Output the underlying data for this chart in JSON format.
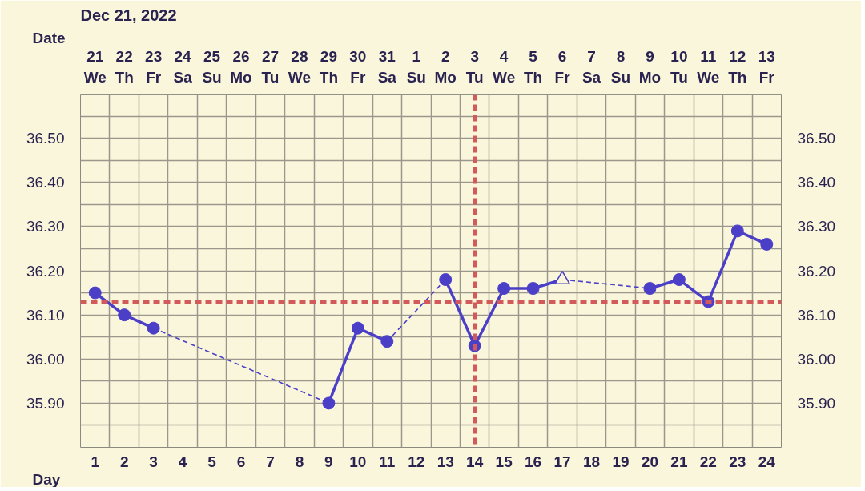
{
  "chart_data": {
    "type": "line",
    "title": "Dec 21, 2022",
    "xlabel": "Day",
    "x2label": "Date",
    "x": [
      1,
      2,
      3,
      4,
      5,
      6,
      7,
      8,
      9,
      10,
      11,
      12,
      13,
      14,
      15,
      16,
      17,
      18,
      19,
      20,
      21,
      22,
      23,
      24
    ],
    "xlim": [
      0.5,
      24.5
    ],
    "xticks": [
      1,
      2,
      3,
      4,
      5,
      6,
      7,
      8,
      9,
      10,
      11,
      12,
      13,
      14,
      15,
      16,
      17,
      18,
      19,
      20,
      21,
      22,
      23,
      24
    ],
    "x2lim": [
      "2022-12-20T12:00",
      "2023-01-13T12:00"
    ],
    "x2ticks": [
      {
        "value": "2022-12-21",
        "label": "21\nWe"
      },
      {
        "value": "2022-12-22",
        "label": "22\nTh"
      },
      {
        "value": "2022-12-23",
        "label": "23\nFr"
      },
      {
        "value": "2022-12-24",
        "label": "24\nSa"
      },
      {
        "value": "2022-12-25",
        "label": "25\nSu"
      },
      {
        "value": "2022-12-26",
        "label": "26\nMo"
      },
      {
        "value": "2022-12-27",
        "label": "27\nTu"
      },
      {
        "value": "2022-12-28",
        "label": "28\nWe"
      },
      {
        "value": "2022-12-29",
        "label": "29\nTh"
      },
      {
        "value": "2022-12-30",
        "label": "30\nFr"
      },
      {
        "value": "2022-12-31",
        "label": "31\nSa"
      },
      {
        "value": "2023-01-01",
        "label": "1\nSu"
      },
      {
        "value": "2023-01-02",
        "label": "2\nMo"
      },
      {
        "value": "2023-01-03",
        "label": "3\nTu"
      },
      {
        "value": "2023-01-04",
        "label": "4\nWe"
      },
      {
        "value": "2023-01-05",
        "label": "5\nTh"
      },
      {
        "value": "2023-01-06",
        "label": "6\nFr"
      },
      {
        "value": "2023-01-07",
        "label": "7\nSa"
      },
      {
        "value": "2023-01-08",
        "label": "8\nSu"
      },
      {
        "value": "2023-01-09",
        "label": "9\nMo"
      },
      {
        "value": "2023-01-10",
        "label": "10\nTu"
      },
      {
        "value": "2023-01-11",
        "label": "11\nWe"
      },
      {
        "value": "2023-01-12",
        "label": "12\nTh"
      },
      {
        "value": "2023-01-13",
        "label": "13\nFr"
      }
    ],
    "ylim": [
      35.8,
      36.6
    ],
    "yticks": [
      {
        "value": 35.9,
        "label": "35.90"
      },
      {
        "value": 36.0,
        "label": "36.00"
      },
      {
        "value": 36.1,
        "label": "36.10"
      },
      {
        "value": 36.2,
        "label": "36.20"
      },
      {
        "value": 36.3,
        "label": "36.30"
      },
      {
        "value": 36.4,
        "label": "36.40"
      },
      {
        "value": 36.5,
        "label": "36.50"
      }
    ],
    "y2lim": [
      35.8,
      36.6
    ],
    "y2ticks": [
      {
        "value": 35.9,
        "label": "35.90"
      },
      {
        "value": 36.0,
        "label": "36.00"
      },
      {
        "value": 36.1,
        "label": "36.10"
      },
      {
        "value": 36.2,
        "label": "36.20"
      },
      {
        "value": 36.3,
        "label": "36.30"
      },
      {
        "value": 36.4,
        "label": "36.40"
      },
      {
        "value": 36.5,
        "label": "36.50"
      }
    ],
    "grid": true,
    "series": [
      {
        "marker": "none",
        "color": "#4b3fc8",
        "values": [
          36.15,
          36.1,
          36.07,
          null,
          null,
          null,
          null,
          null,
          35.9,
          36.07,
          36.04,
          null,
          36.18,
          36.03,
          36.16,
          36.16,
          36.18,
          null,
          null,
          36.16,
          36.18,
          36.13,
          36.29,
          36.26
        ]
      },
      {
        "type": "scatter",
        "marker": "circle",
        "color": "#4b3fc8",
        "values": [
          36.15,
          36.1,
          36.07,
          null,
          null,
          null,
          null,
          null,
          35.9,
          36.07,
          36.04,
          null,
          36.18,
          36.03,
          36.16,
          36.16,
          null,
          null,
          null,
          36.16,
          36.18,
          36.13,
          36.29,
          36.26
        ]
      },
      {
        "type": "scatter",
        "marker": "triangle",
        "color": "#4b3fc8",
        "x": [
          17
        ],
        "values": [
          36.18
        ]
      }
    ],
    "ref_lines": [
      {
        "axis": "y",
        "value": 36.13,
        "color": "#d25a5a",
        "line_style": "dashed"
      },
      {
        "axis": "x",
        "value": 14,
        "color": "#d25a5a",
        "line_style": "dashed"
      }
    ]
  }
}
